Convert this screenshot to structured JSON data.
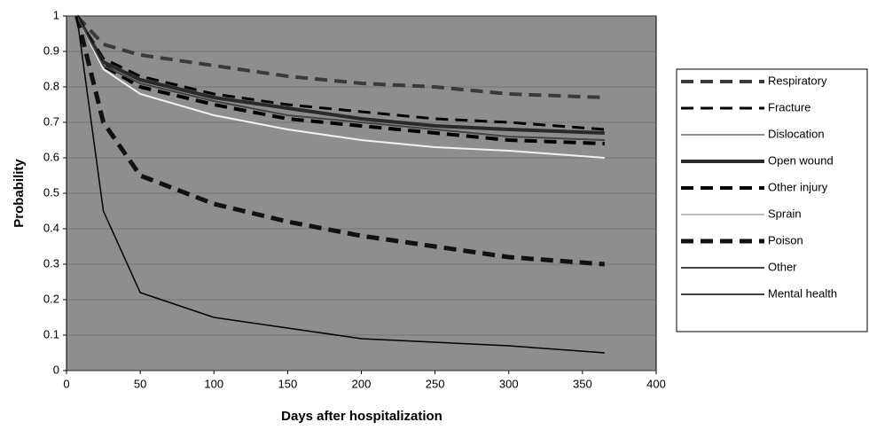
{
  "chart_data": {
    "type": "line",
    "xlabel": "Days after hospitalization",
    "ylabel": "Probability",
    "x": [
      7,
      25,
      50,
      100,
      150,
      200,
      250,
      300,
      365
    ],
    "series": [
      {
        "name": "Respiratory",
        "color": "#3a3a3a",
        "dash": true,
        "width": 4,
        "values": [
          1,
          0.92,
          0.89,
          0.86,
          0.83,
          0.81,
          0.8,
          0.78,
          0.77
        ]
      },
      {
        "name": "Fracture",
        "color": "#000000",
        "dash": true,
        "width": 3,
        "values": [
          1,
          0.88,
          0.83,
          0.78,
          0.75,
          0.73,
          0.71,
          0.7,
          0.68
        ]
      },
      {
        "name": "Dislocation",
        "color": "#8c8c8c",
        "dash": false,
        "width": 2,
        "values": [
          1,
          0.87,
          0.81,
          0.76,
          0.73,
          0.7,
          0.68,
          0.67,
          0.66
        ]
      },
      {
        "name": "Open wound",
        "color": "#2a2a2a",
        "dash": false,
        "width": 4,
        "values": [
          1,
          0.87,
          0.82,
          0.77,
          0.74,
          0.71,
          0.69,
          0.68,
          0.67
        ]
      },
      {
        "name": "Other injury",
        "color": "#000000",
        "dash": true,
        "width": 4,
        "values": [
          1,
          0.86,
          0.8,
          0.75,
          0.71,
          0.69,
          0.67,
          0.65,
          0.64
        ]
      },
      {
        "name": "Sprain",
        "color": "#f0f0f0",
        "dash": false,
        "width": 2,
        "values": [
          1,
          0.85,
          0.78,
          0.72,
          0.68,
          0.65,
          0.63,
          0.62,
          0.6
        ]
      },
      {
        "name": "Poison",
        "color": "#111111",
        "dash": true,
        "width": 5,
        "values": [
          1,
          0.7,
          0.55,
          0.47,
          0.42,
          0.38,
          0.35,
          0.32,
          0.3
        ]
      },
      {
        "name": "Other",
        "color": "#444444",
        "dash": false,
        "width": 2,
        "values": [
          1,
          0.86,
          0.81,
          0.76,
          0.72,
          0.7,
          0.68,
          0.66,
          0.65
        ]
      },
      {
        "name": "Mental health",
        "color": "#000000",
        "dash": false,
        "width": 1.5,
        "values": [
          1,
          0.45,
          0.22,
          0.15,
          0.12,
          0.09,
          0.08,
          0.07,
          0.05
        ]
      }
    ],
    "xlim": [
      0,
      400
    ],
    "xticks": [
      0,
      50,
      100,
      150,
      200,
      250,
      300,
      350,
      400
    ],
    "ylim": [
      0,
      1
    ],
    "yticks": [
      0,
      0.1,
      0.2,
      0.3,
      0.4,
      0.5,
      0.6,
      0.7,
      0.8,
      0.9,
      1
    ],
    "grid": true,
    "legend": "right"
  }
}
